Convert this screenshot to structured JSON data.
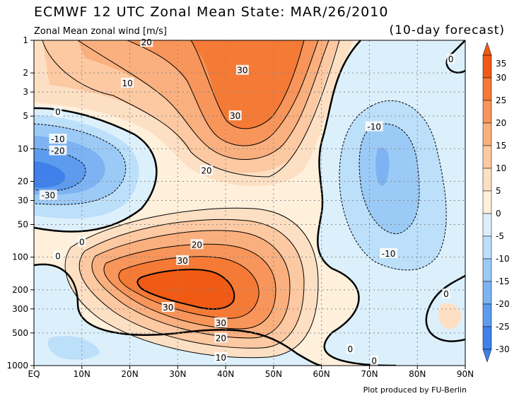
{
  "header": {
    "title": "ECMWF 12 UTC Zonal Mean State: MAR/26/2010",
    "subtitle": "Zonal Mean zonal wind [m/s]",
    "forecast": "(10-day forecast)",
    "credit": "Plot produced by FU-Berlin"
  },
  "chart_data": {
    "type": "heatmap",
    "title": "ECMWF 12 UTC Zonal Mean State: MAR/26/2010",
    "subtitle": "Zonal Mean zonal wind [m/s]",
    "x": [
      "EQ",
      "10N",
      "20N",
      "30N",
      "40N",
      "50N",
      "60N",
      "70N",
      "80N",
      "90N"
    ],
    "xlim": [
      0,
      90
    ],
    "y": [
      "1",
      "2",
      "3",
      "5",
      "10",
      "20",
      "30",
      "50",
      "100",
      "200",
      "300",
      "500",
      "1000"
    ],
    "ylim": [
      1000,
      1
    ],
    "y_scale": "log",
    "grid": true,
    "colorbar": {
      "levels": [
        "35",
        "30",
        "25",
        "20",
        "15",
        "10",
        "5",
        "0",
        "-5",
        "-10",
        "-15",
        "-20",
        "-25",
        "-30"
      ],
      "colors": [
        "#f05a14",
        "#f57a35",
        "#f8955a",
        "#fab07e",
        "#fcc9a2",
        "#fde0c4",
        "#fff0dc",
        "#dcf0fc",
        "#bcdffa",
        "#9ccaf6",
        "#7db3f2",
        "#5d9bee",
        "#3f80ea"
      ]
    },
    "contour_labels": [
      {
        "text": "20",
        "lat": 23.5,
        "p": 1.05
      },
      {
        "text": "30",
        "lat": 43.5,
        "p": 1.9
      },
      {
        "text": "10",
        "lat": 19.5,
        "p": 2.5
      },
      {
        "text": "30",
        "lat": 42,
        "p": 5
      },
      {
        "text": "20",
        "lat": 36,
        "p": 16
      },
      {
        "text": "0",
        "lat": 5,
        "p": 4.6
      },
      {
        "text": "-10",
        "lat": 5,
        "p": 8.2
      },
      {
        "text": "-20",
        "lat": 5,
        "p": 10.5
      },
      {
        "text": "-30",
        "lat": 3,
        "p": 27
      },
      {
        "text": "0",
        "lat": 10,
        "p": 73
      },
      {
        "text": "0",
        "lat": 5,
        "p": 98
      },
      {
        "text": "20",
        "lat": 34,
        "p": 77
      },
      {
        "text": "30",
        "lat": 31,
        "p": 108
      },
      {
        "text": "30",
        "lat": 28,
        "p": 292
      },
      {
        "text": "30",
        "lat": 39,
        "p": 405
      },
      {
        "text": "20",
        "lat": 39,
        "p": 560
      },
      {
        "text": "10",
        "lat": 39,
        "p": 845
      },
      {
        "text": "-10",
        "lat": 71,
        "p": 6.3
      },
      {
        "text": "-10",
        "lat": 74,
        "p": 93
      },
      {
        "text": "0",
        "lat": 87,
        "p": 1.5
      },
      {
        "text": "0",
        "lat": 86,
        "p": 220
      },
      {
        "text": "0",
        "lat": 66,
        "p": 710
      },
      {
        "text": "0",
        "lat": 71,
        "p": 910
      }
    ]
  }
}
